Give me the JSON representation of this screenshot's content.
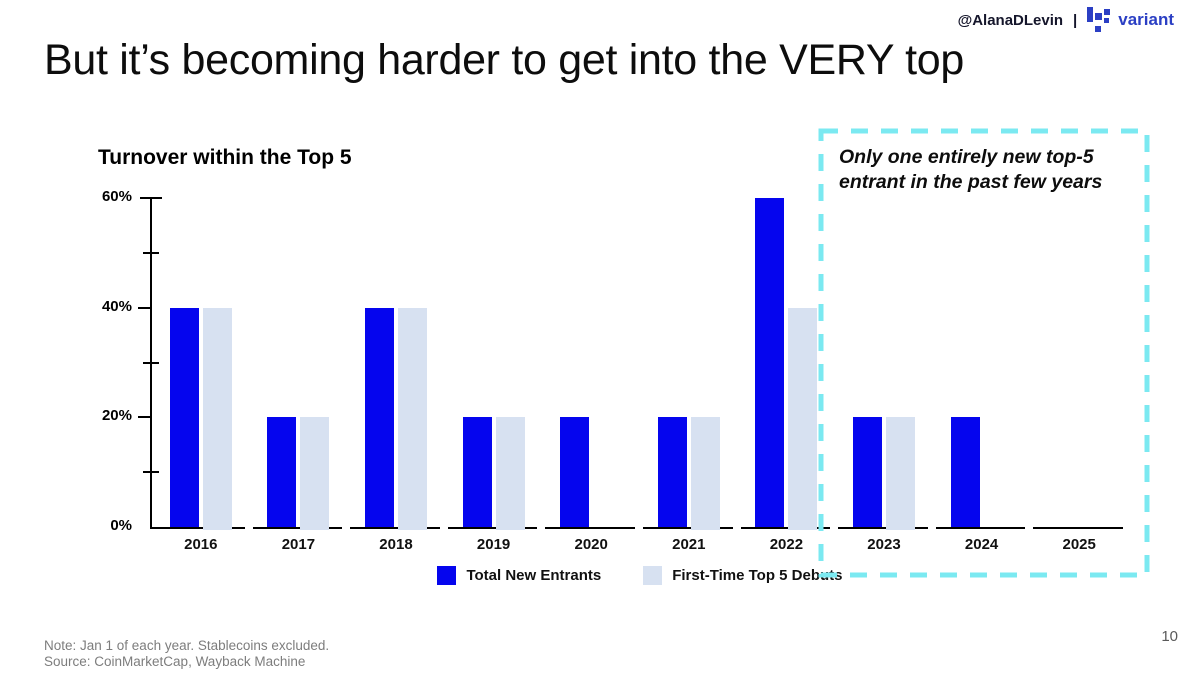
{
  "header": {
    "handle": "@AlanaDLevin",
    "separator": "|",
    "brand": "variant",
    "brand_color": "#2b3fc4"
  },
  "title": "But it’s becoming harder to get into the VERY top",
  "chart_data": {
    "type": "bar",
    "title": "Turnover within the Top 5",
    "categories": [
      "2016",
      "2017",
      "2018",
      "2019",
      "2020",
      "2021",
      "2022",
      "2023",
      "2024",
      "2025"
    ],
    "series": [
      {
        "name": "Total New Entrants",
        "color": "#0505ee",
        "values": [
          40,
          20,
          40,
          20,
          20,
          20,
          60,
          20,
          20,
          0
        ]
      },
      {
        "name": "First-Time Top 5 Debuts",
        "color": "#d7e1f1",
        "values": [
          40,
          20,
          40,
          20,
          0,
          20,
          40,
          20,
          0,
          0
        ]
      }
    ],
    "xlabel": "",
    "ylabel": "",
    "ylim": [
      0,
      60
    ],
    "ytick_labels": [
      "0%",
      "20%",
      "40%",
      "60%"
    ],
    "major_tick_step": 20,
    "minor_tick_step": 10,
    "grid": false,
    "legend_position": "bottom"
  },
  "annotation": {
    "box_color": "#7be9f1",
    "lines": [
      "Only one entirely new top-5",
      "entrant in the past few years"
    ]
  },
  "footnote": {
    "note": "Note: Jan 1 of each year. Stablecoins excluded.",
    "source": "Source: CoinMarketCap, Wayback Machine"
  },
  "page_number": "10"
}
